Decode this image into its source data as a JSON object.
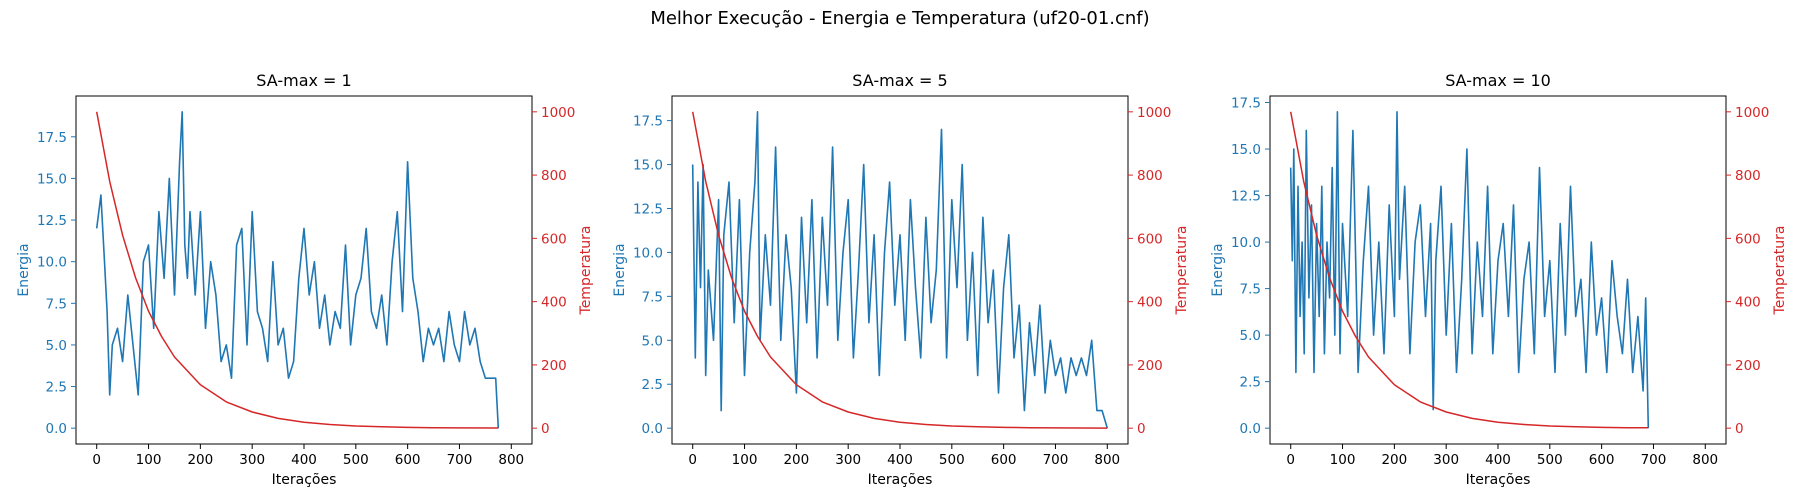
{
  "figure": {
    "title": "Melhor Execução - Energia e Temperatura (uf20-01.cnf)"
  },
  "colors": {
    "energy": "#1f77b4",
    "temperature": "#d62728",
    "axis": "#000000"
  },
  "chart_data": [
    {
      "type": "line",
      "title": "SA-max = 1",
      "xlabel": "Iterações",
      "ylabel_left": "Energia",
      "ylabel_right": "Temperatura",
      "xlim": [
        -40,
        840
      ],
      "xticks": [
        0,
        100,
        200,
        300,
        400,
        500,
        600,
        700,
        800
      ],
      "ylim_left": [
        -0.95,
        19.95
      ],
      "yticks_left": [
        "0.0",
        "2.5",
        "5.0",
        "7.5",
        "10.0",
        "12.5",
        "15.0",
        "17.5"
      ],
      "ylim_right": [
        -50,
        1050
      ],
      "yticks_right": [
        0,
        200,
        400,
        600,
        800,
        1000
      ],
      "grid": false,
      "series": [
        {
          "axis": "left",
          "x": [
            0,
            8,
            15,
            20,
            25,
            30,
            40,
            50,
            60,
            70,
            80,
            90,
            100,
            110,
            120,
            130,
            140,
            150,
            160,
            165,
            170,
            175,
            180,
            190,
            200,
            210,
            220,
            230,
            240,
            250,
            260,
            270,
            280,
            290,
            300,
            310,
            320,
            330,
            340,
            350,
            360,
            370,
            380,
            390,
            400,
            410,
            420,
            430,
            440,
            450,
            460,
            470,
            480,
            490,
            500,
            510,
            520,
            530,
            540,
            550,
            560,
            570,
            580,
            590,
            600,
            610,
            620,
            630,
            640,
            650,
            660,
            670,
            680,
            690,
            700,
            710,
            720,
            730,
            740,
            750,
            760,
            770,
            775
          ],
          "values": [
            12,
            14,
            10,
            7,
            2,
            5,
            6,
            4,
            8,
            5,
            2,
            10,
            11,
            6,
            13,
            9,
            15,
            8,
            16,
            19,
            11,
            9,
            13,
            8,
            13,
            6,
            10,
            8,
            4,
            5,
            3,
            11,
            12,
            5,
            13,
            7,
            6,
            4,
            10,
            5,
            6,
            3,
            4,
            9,
            12,
            8,
            10,
            6,
            8,
            5,
            7,
            6,
            11,
            5,
            8,
            9,
            12,
            7,
            6,
            8,
            5,
            10,
            13,
            7,
            16,
            9,
            7,
            4,
            6,
            5,
            6,
            4,
            7,
            5,
            4,
            7,
            5,
            6,
            4,
            3,
            3,
            3,
            0
          ]
        },
        {
          "axis": "right",
          "x": [
            0,
            25,
            50,
            75,
            100,
            125,
            150,
            200,
            250,
            300,
            350,
            400,
            450,
            500,
            550,
            600,
            650,
            700,
            775
          ],
          "values": [
            1000,
            780,
            610,
            475,
            370,
            290,
            225,
            137,
            83,
            51,
            31,
            19,
            11.5,
            7,
            4.3,
            2.6,
            1.6,
            1,
            0.5
          ]
        }
      ]
    },
    {
      "type": "line",
      "title": "SA-max = 5",
      "xlabel": "Iterações",
      "ylabel_left": "Energia",
      "ylabel_right": "Temperatura",
      "xlim": [
        -40,
        840
      ],
      "xticks": [
        0,
        100,
        200,
        300,
        400,
        500,
        600,
        700,
        800
      ],
      "ylim_left": [
        -0.9,
        18.9
      ],
      "yticks_left": [
        "0.0",
        "2.5",
        "5.0",
        "7.5",
        "10.0",
        "12.5",
        "15.0",
        "17.5"
      ],
      "ylim_right": [
        -50,
        1050
      ],
      "yticks_right": [
        0,
        200,
        400,
        600,
        800,
        1000
      ],
      "grid": false,
      "series": [
        {
          "axis": "left",
          "x": [
            0,
            5,
            10,
            15,
            20,
            25,
            30,
            40,
            50,
            55,
            60,
            70,
            80,
            90,
            100,
            110,
            120,
            125,
            130,
            140,
            150,
            160,
            170,
            180,
            190,
            200,
            210,
            220,
            230,
            240,
            250,
            260,
            270,
            280,
            290,
            300,
            310,
            320,
            330,
            340,
            350,
            360,
            370,
            380,
            390,
            400,
            410,
            420,
            430,
            440,
            450,
            460,
            470,
            480,
            490,
            500,
            510,
            520,
            530,
            540,
            550,
            560,
            570,
            580,
            590,
            600,
            610,
            620,
            630,
            640,
            650,
            660,
            670,
            680,
            690,
            700,
            710,
            720,
            730,
            740,
            750,
            760,
            770,
            780,
            790,
            800
          ],
          "values": [
            15,
            4,
            14,
            8,
            15,
            3,
            9,
            5,
            13,
            1,
            11,
            14,
            6,
            13,
            3,
            10,
            14,
            18,
            5,
            11,
            7,
            16,
            5,
            11,
            8,
            2,
            12,
            6,
            13,
            4,
            12,
            7,
            16,
            5,
            10,
            13,
            4,
            9,
            15,
            6,
            11,
            3,
            10,
            14,
            7,
            11,
            5,
            13,
            8,
            4,
            12,
            6,
            9,
            17,
            4,
            13,
            8,
            15,
            5,
            10,
            3,
            12,
            6,
            9,
            2,
            8,
            11,
            4,
            7,
            1,
            6,
            3,
            7,
            2,
            5,
            3,
            4,
            2,
            4,
            3,
            4,
            3,
            5,
            1,
            1,
            0
          ]
        },
        {
          "axis": "right",
          "x": [
            0,
            25,
            50,
            75,
            100,
            125,
            150,
            200,
            250,
            300,
            350,
            400,
            450,
            500,
            550,
            600,
            650,
            700,
            800
          ],
          "values": [
            1000,
            780,
            610,
            475,
            370,
            290,
            225,
            137,
            83,
            51,
            31,
            19,
            11.5,
            7,
            4.3,
            2.6,
            1.6,
            1,
            0.4
          ]
        }
      ]
    },
    {
      "type": "line",
      "title": "SA-max = 10",
      "xlabel": "Iterações",
      "ylabel_left": "Energia",
      "ylabel_right": "Temperatura",
      "xlim": [
        -40,
        840
      ],
      "xticks": [
        0,
        100,
        200,
        300,
        400,
        500,
        600,
        700,
        800
      ],
      "ylim_left": [
        -0.85,
        17.85
      ],
      "yticks_left": [
        "0.0",
        "2.5",
        "5.0",
        "7.5",
        "10.0",
        "12.5",
        "15.0",
        "17.5"
      ],
      "ylim_right": [
        -50,
        1050
      ],
      "yticks_right": [
        0,
        200,
        400,
        600,
        800,
        1000
      ],
      "grid": false,
      "series": [
        {
          "axis": "left",
          "x": [
            0,
            3,
            6,
            10,
            14,
            18,
            22,
            26,
            30,
            35,
            40,
            45,
            50,
            55,
            60,
            65,
            70,
            75,
            80,
            85,
            90,
            95,
            100,
            110,
            120,
            130,
            140,
            150,
            160,
            170,
            180,
            190,
            200,
            205,
            210,
            220,
            230,
            240,
            250,
            260,
            270,
            275,
            280,
            290,
            300,
            310,
            320,
            330,
            340,
            350,
            360,
            370,
            380,
            390,
            400,
            410,
            420,
            430,
            440,
            450,
            460,
            470,
            480,
            490,
            500,
            510,
            520,
            530,
            540,
            550,
            560,
            570,
            580,
            590,
            600,
            610,
            620,
            630,
            640,
            650,
            660,
            670,
            680,
            685,
            690
          ],
          "values": [
            14,
            9,
            15,
            3,
            13,
            6,
            10,
            4,
            16,
            7,
            12,
            3,
            11,
            6,
            13,
            4,
            10,
            7,
            14,
            5,
            17,
            4,
            11,
            6,
            16,
            3,
            9,
            13,
            5,
            10,
            4,
            12,
            6,
            17,
            8,
            13,
            4,
            10,
            12,
            6,
            11,
            1,
            9,
            13,
            5,
            11,
            3,
            8,
            15,
            4,
            10,
            6,
            13,
            4,
            9,
            11,
            6,
            12,
            3,
            8,
            10,
            4,
            14,
            6,
            9,
            3,
            11,
            5,
            13,
            6,
            8,
            3,
            10,
            5,
            7,
            3,
            9,
            6,
            4,
            8,
            3,
            6,
            2,
            7,
            0
          ]
        },
        {
          "axis": "right",
          "x": [
            0,
            25,
            50,
            75,
            100,
            125,
            150,
            200,
            250,
            300,
            350,
            400,
            450,
            500,
            550,
            600,
            650,
            690
          ],
          "values": [
            1000,
            780,
            610,
            475,
            370,
            290,
            225,
            137,
            83,
            51,
            31,
            19,
            11.5,
            7,
            4.3,
            2.6,
            1.6,
            1.1
          ]
        }
      ]
    }
  ]
}
